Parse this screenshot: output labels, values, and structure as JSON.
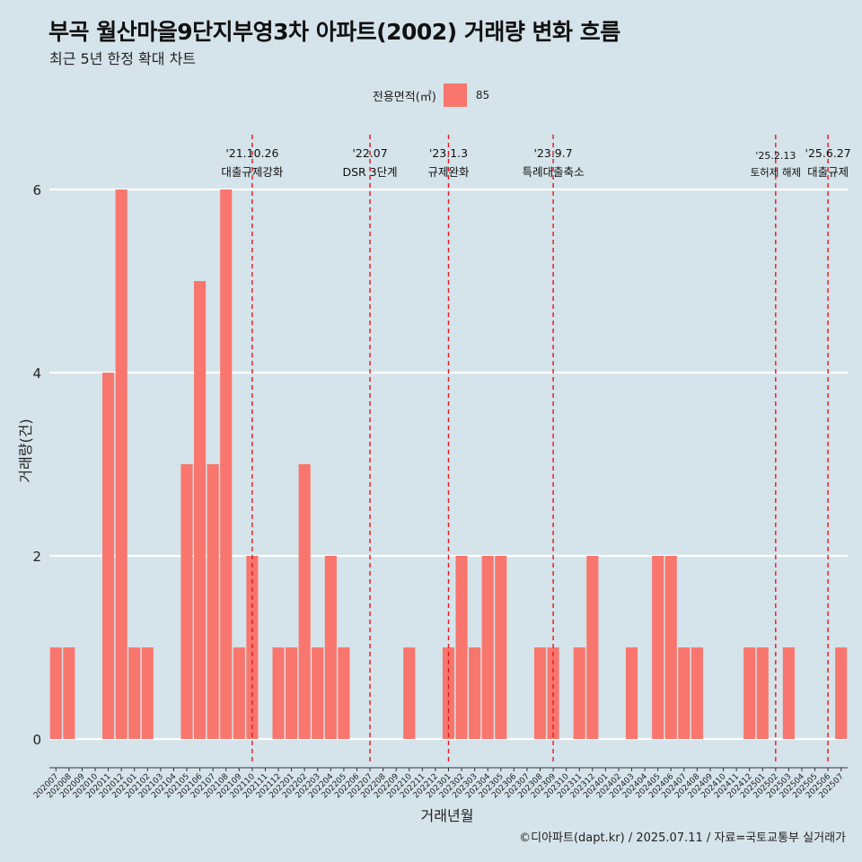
{
  "title": "부곡 월산마을9단지부영3차 아파트(2002) 거래량 변화 흐름",
  "subtitle": "최근 5년 한정 확대 차트",
  "caption": "©디아파트(dapt.kr) / 2025.07.11 / 자료=국토교통부 실거래가",
  "legend": {
    "title": "전용면적(㎡)",
    "items": [
      {
        "label": "85",
        "color": "#f8766d"
      }
    ]
  },
  "chart_data": {
    "type": "bar",
    "xlabel": "거래년월",
    "ylabel": "거래량(건)",
    "ylim": [
      0,
      6.5
    ],
    "yticks": [
      0,
      2,
      4,
      6
    ],
    "grid": true,
    "legend_position": "top",
    "bar_color": "#f8766d",
    "categories": [
      "202007",
      "202008",
      "202009",
      "202010",
      "202011",
      "202012",
      "202101",
      "202102",
      "202103",
      "202104",
      "202105",
      "202106",
      "202107",
      "202108",
      "202109",
      "202110",
      "202111",
      "202112",
      "202201",
      "202202",
      "202203",
      "202204",
      "202205",
      "202206",
      "202207",
      "202208",
      "202209",
      "202210",
      "202211",
      "202212",
      "202301",
      "202302",
      "202303",
      "202304",
      "202305",
      "202306",
      "202307",
      "202308",
      "202309",
      "202310",
      "202311",
      "202312",
      "202401",
      "202402",
      "202403",
      "202404",
      "202405",
      "202406",
      "202407",
      "202408",
      "202409",
      "202410",
      "202411",
      "202412",
      "202501",
      "202502",
      "202503",
      "202504",
      "202505",
      "202506",
      "202507"
    ],
    "series": [
      {
        "name": "85",
        "values": [
          1,
          1,
          0,
          0,
          4,
          6,
          1,
          1,
          0,
          0,
          3,
          5,
          3,
          6,
          1,
          2,
          0,
          1,
          1,
          3,
          1,
          2,
          1,
          0,
          0,
          0,
          0,
          1,
          0,
          0,
          1,
          2,
          1,
          2,
          2,
          0,
          0,
          1,
          1,
          0,
          1,
          2,
          0,
          0,
          1,
          0,
          2,
          2,
          1,
          1,
          0,
          0,
          0,
          1,
          1,
          0,
          1,
          0,
          0,
          0,
          1
        ]
      }
    ],
    "annotations": [
      {
        "date": "'21.10.26",
        "label": "대출규제강화",
        "x": "202110"
      },
      {
        "date": "'22.07",
        "label": "DSR 3단계",
        "x": "202207"
      },
      {
        "date": "'23.1.3",
        "label": "규제완화",
        "x": "202301"
      },
      {
        "date": "'23.9.7",
        "label": "특례대출축소",
        "x": "202309"
      },
      {
        "date": "'25.2.13",
        "label": "토허제 해제",
        "x": "202502"
      },
      {
        "date": "'25.6.27",
        "label": "대출규제",
        "x": "202506"
      }
    ]
  }
}
